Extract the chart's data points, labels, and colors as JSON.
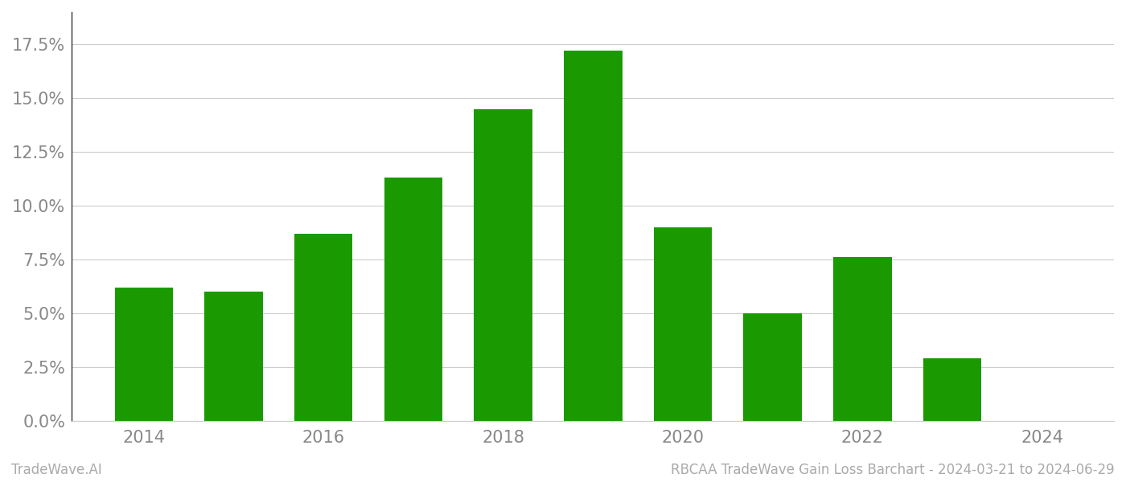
{
  "years": [
    2014,
    2015,
    2016,
    2017,
    2018,
    2019,
    2020,
    2021,
    2022,
    2023
  ],
  "values": [
    0.062,
    0.06,
    0.087,
    0.113,
    0.145,
    0.172,
    0.09,
    0.05,
    0.076,
    0.029
  ],
  "bar_color": "#1a9a00",
  "background_color": "#ffffff",
  "grid_color": "#cccccc",
  "yticks": [
    0.0,
    0.025,
    0.05,
    0.075,
    0.1,
    0.125,
    0.15,
    0.175
  ],
  "ylim": [
    0.0,
    0.19
  ],
  "xlim": [
    2013.2,
    2024.8
  ],
  "xticks": [
    2014,
    2016,
    2018,
    2020,
    2022,
    2024
  ],
  "footer_left": "TradeWave.AI",
  "footer_right": "RBCAA TradeWave Gain Loss Barchart - 2024-03-21 to 2024-06-29",
  "footer_color": "#aaaaaa",
  "tick_label_color": "#888888",
  "spine_color": "#cccccc",
  "left_spine_color": "#333333",
  "bar_width": 0.65,
  "figsize": [
    14.0,
    6.0
  ],
  "dpi": 100,
  "tick_fontsize": 15,
  "footer_fontsize": 12
}
